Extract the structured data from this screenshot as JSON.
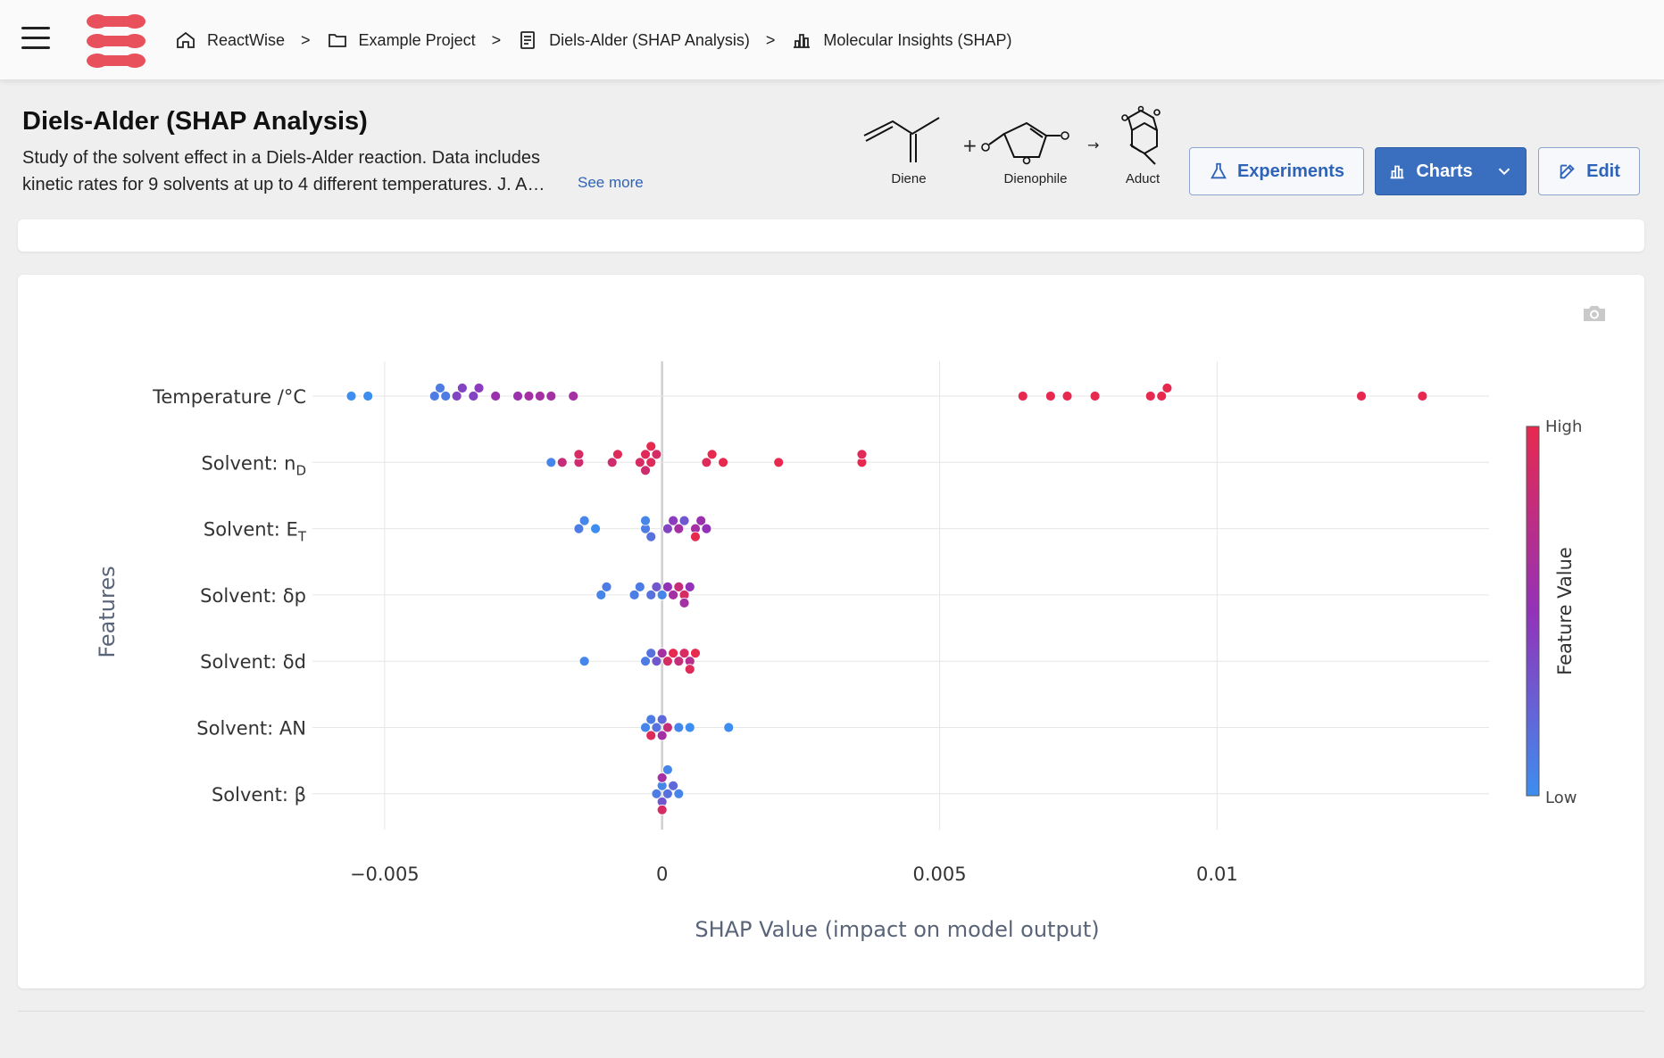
{
  "breadcrumb": [
    {
      "label": "ReactWise",
      "icon": "home-icon"
    },
    {
      "label": "Example Project",
      "icon": "folder-icon"
    },
    {
      "label": "Diels-Alder (SHAP Analysis)",
      "icon": "document-icon"
    },
    {
      "label": "Molecular Insights (SHAP)",
      "icon": "chart-icon"
    }
  ],
  "separator": ">",
  "page": {
    "title": "Diels-Alder (SHAP Analysis)",
    "description_line1": "Study of the solvent effect in a Diels-Alder reaction. Data includes",
    "description_line2": "kinetic rates for 9 solvents at up to 4 different temperatures. J. A…",
    "see_more": "See more"
  },
  "reaction": {
    "diene": "Diene",
    "plus": "+",
    "dienophile": "Dienophile",
    "arrow": "→",
    "adduct": "Aduct"
  },
  "buttons": {
    "experiments": "Experiments",
    "charts": "Charts",
    "edit": "Edit"
  },
  "colors": {
    "brand": "#e8505b",
    "accent": "#3a6fc0",
    "low": "#3d8ef0",
    "high": "#e8294f"
  },
  "chart_data": {
    "type": "scatter",
    "subtype": "shap-beeswarm",
    "xlabel": "SHAP Value (impact on model output)",
    "ylabel": "Features",
    "xlim": [
      -0.0063,
      0.0149
    ],
    "xticks": [
      -0.005,
      0,
      0.005,
      0.01
    ],
    "xtick_labels": [
      "−0.005",
      "0",
      "0.005",
      "0.01"
    ],
    "colorbar": {
      "title": "Feature Value",
      "high": "High",
      "low": "Low"
    },
    "features": [
      {
        "name": "Temperature /°C",
        "base": "Temperature /°C",
        "sub": "",
        "points": [
          [
            -0.0056,
            0.0
          ],
          [
            -0.0053,
            0.0
          ],
          [
            -0.0041,
            0.1
          ],
          [
            -0.004,
            0.1
          ],
          [
            -0.0039,
            0.1
          ],
          [
            -0.0037,
            0.4
          ],
          [
            -0.0036,
            0.4
          ],
          [
            -0.0034,
            0.4
          ],
          [
            -0.0033,
            0.45
          ],
          [
            -0.003,
            0.55
          ],
          [
            -0.0026,
            0.55
          ],
          [
            -0.0024,
            0.6
          ],
          [
            -0.0022,
            0.6
          ],
          [
            -0.002,
            0.6
          ],
          [
            -0.0016,
            0.6
          ],
          [
            0.0065,
            1.0
          ],
          [
            0.007,
            1.0
          ],
          [
            0.0073,
            1.0
          ],
          [
            0.0078,
            1.0
          ],
          [
            0.0088,
            1.0
          ],
          [
            0.009,
            1.0
          ],
          [
            0.0091,
            1.0
          ],
          [
            0.0126,
            1.0
          ],
          [
            0.0137,
            1.0
          ]
        ]
      },
      {
        "name": "Solvent: nD",
        "base": "Solvent: n",
        "sub": "D",
        "points": [
          [
            -0.002,
            0.05
          ],
          [
            -0.0018,
            0.8
          ],
          [
            -0.0015,
            0.85
          ],
          [
            -0.0015,
            0.9
          ],
          [
            -0.0009,
            0.85
          ],
          [
            -0.0008,
            0.95
          ],
          [
            -0.0004,
            0.9
          ],
          [
            -0.0003,
            0.95
          ],
          [
            -0.0003,
            0.85
          ],
          [
            -0.0002,
            0.95
          ],
          [
            -0.0002,
            1.0
          ],
          [
            -0.0001,
            0.9
          ],
          [
            0.0008,
            0.95
          ],
          [
            0.0009,
            1.0
          ],
          [
            0.0011,
            1.0
          ],
          [
            0.0021,
            1.0
          ],
          [
            0.0036,
            1.0
          ],
          [
            0.0036,
            0.95
          ]
        ]
      },
      {
        "name": "Solvent: ET",
        "base": "Solvent: E",
        "sub": "T",
        "points": [
          [
            -0.0015,
            0.1
          ],
          [
            -0.0014,
            0.05
          ],
          [
            -0.0012,
            0.0
          ],
          [
            -0.0003,
            0.1
          ],
          [
            -0.0003,
            0.05
          ],
          [
            -0.0002,
            0.15
          ],
          [
            0.0001,
            0.4
          ],
          [
            0.0002,
            0.45
          ],
          [
            0.0003,
            0.6
          ],
          [
            0.0004,
            0.3
          ],
          [
            0.0006,
            0.6
          ],
          [
            0.0007,
            0.55
          ],
          [
            0.0006,
            1.0
          ],
          [
            0.0008,
            0.5
          ]
        ]
      },
      {
        "name": "Solvent: δp",
        "base": "Solvent: δp",
        "sub": "",
        "points": [
          [
            -0.0011,
            0.05
          ],
          [
            -0.001,
            0.1
          ],
          [
            -0.0005,
            0.1
          ],
          [
            -0.0004,
            0.1
          ],
          [
            -0.0002,
            0.15
          ],
          [
            -0.0001,
            0.3
          ],
          [
            0.0,
            0.05
          ],
          [
            0.0001,
            0.5
          ],
          [
            0.0002,
            0.6
          ],
          [
            0.0003,
            0.8
          ],
          [
            0.0004,
            0.9
          ],
          [
            0.0004,
            0.6
          ],
          [
            0.0005,
            0.5
          ]
        ]
      },
      {
        "name": "Solvent: δd",
        "base": "Solvent: δd",
        "sub": "",
        "points": [
          [
            -0.0014,
            0.05
          ],
          [
            -0.0003,
            0.1
          ],
          [
            -0.0002,
            0.15
          ],
          [
            -0.0001,
            0.3
          ],
          [
            0.0,
            0.6
          ],
          [
            0.0001,
            0.9
          ],
          [
            0.0002,
            1.0
          ],
          [
            0.0003,
            0.8
          ],
          [
            0.0004,
            0.9
          ],
          [
            0.0005,
            0.7
          ],
          [
            0.0005,
            0.95
          ],
          [
            0.0006,
            1.0
          ]
        ]
      },
      {
        "name": "Solvent: AN",
        "base": "Solvent: AN",
        "sub": "",
        "points": [
          [
            -0.0003,
            0.05
          ],
          [
            -0.0002,
            0.1
          ],
          [
            -0.0002,
            0.95
          ],
          [
            -0.0001,
            0.15
          ],
          [
            0.0,
            0.2
          ],
          [
            0.0,
            0.6
          ],
          [
            0.0001,
            0.8
          ],
          [
            0.0003,
            0.05
          ],
          [
            0.0005,
            0.0
          ],
          [
            0.0012,
            0.0
          ]
        ]
      },
      {
        "name": "Solvent: β",
        "base": "Solvent: β",
        "sub": "",
        "points": [
          [
            -0.0001,
            0.1
          ],
          [
            0.0,
            0.05
          ],
          [
            0.0,
            0.3
          ],
          [
            0.0,
            0.6
          ],
          [
            0.0,
            0.9
          ],
          [
            0.0001,
            0.15
          ],
          [
            0.0001,
            0.05
          ],
          [
            0.0002,
            0.2
          ],
          [
            0.0003,
            0.05
          ]
        ]
      }
    ]
  }
}
